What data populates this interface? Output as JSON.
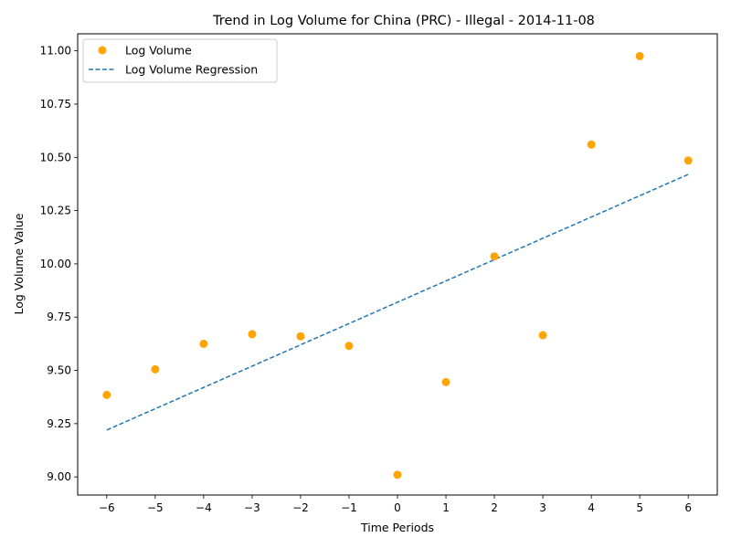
{
  "chart_data": {
    "type": "scatter",
    "title": "Trend in Log Volume for China (PRC) - Illegal - 2014-11-08",
    "xlabel": "Time Periods",
    "ylabel": "Log Volume Value",
    "xlim": [
      -6.6,
      6.6
    ],
    "ylim": [
      8.915,
      11.08
    ],
    "xticks": [
      -6,
      -5,
      -4,
      -3,
      -2,
      -1,
      0,
      1,
      2,
      3,
      4,
      5,
      6
    ],
    "xtick_labels": [
      "−6",
      "−5",
      "−4",
      "−3",
      "−2",
      "−1",
      "0",
      "1",
      "2",
      "3",
      "4",
      "5",
      "6"
    ],
    "yticks": [
      9.0,
      9.25,
      9.5,
      9.75,
      10.0,
      10.25,
      10.5,
      10.75,
      11.0
    ],
    "ytick_labels": [
      "9.00",
      "9.25",
      "9.50",
      "9.75",
      "10.00",
      "10.25",
      "10.50",
      "10.75",
      "11.00"
    ],
    "grid": false,
    "legend_position": "top-left",
    "series": [
      {
        "name": "Log Volume",
        "kind": "scatter",
        "color": "#ffa500",
        "x": [
          -6,
          -5,
          -4,
          -3,
          -2,
          -1,
          0,
          1,
          2,
          3,
          4,
          5,
          6
        ],
        "y": [
          9.385,
          9.505,
          9.625,
          9.67,
          9.66,
          9.615,
          9.01,
          9.445,
          10.035,
          9.665,
          10.56,
          10.975,
          10.485
        ]
      },
      {
        "name": "Log Volume Regression",
        "kind": "line",
        "style": "dashed",
        "color": "#1f77b4",
        "x": [
          -6,
          6
        ],
        "y": [
          9.22,
          10.42
        ]
      }
    ]
  }
}
